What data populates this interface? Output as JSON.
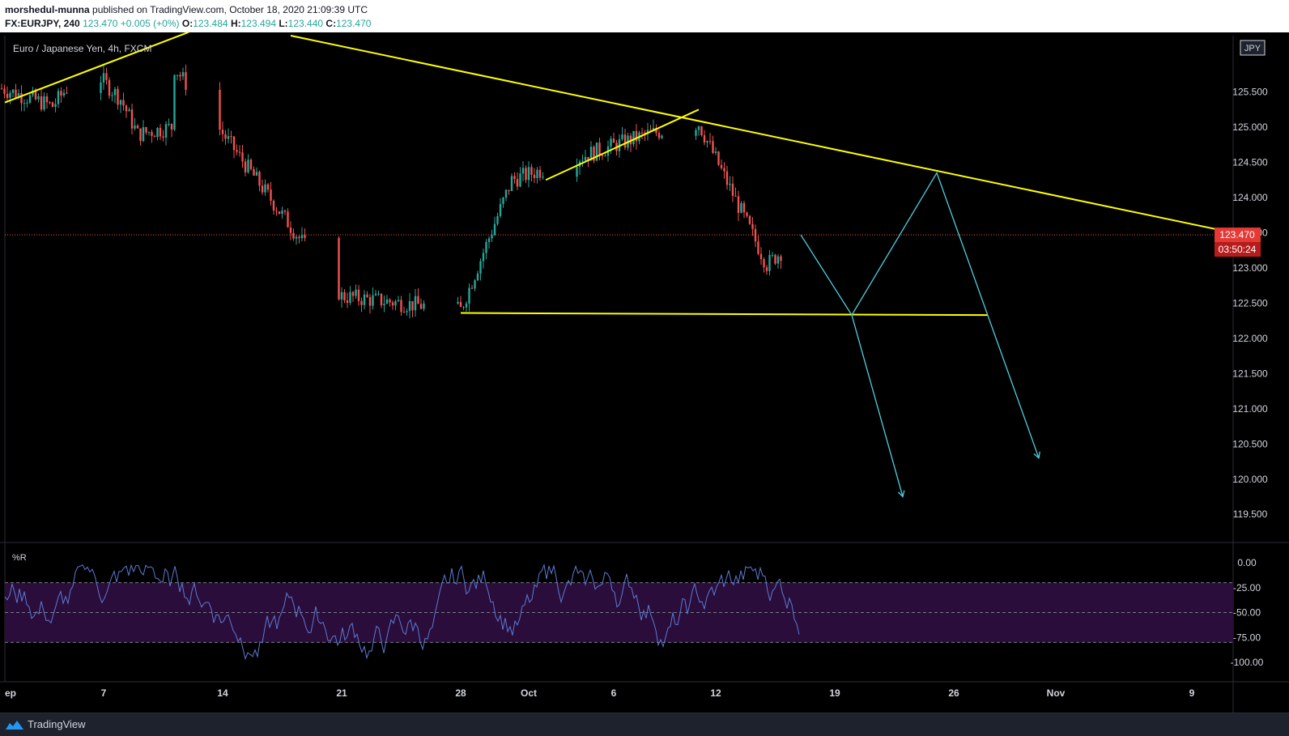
{
  "header": {
    "author": "morshedul-munna",
    "published_text": "published on TradingView.com, October 18, 2020 21:09:39 UTC",
    "symbol": "FX:EURJPY, 240",
    "last": "123.470",
    "change": "+0.005 (+0%)",
    "ohlc": [
      {
        "k": "O:",
        "v": "123.484"
      },
      {
        "k": "H:",
        "v": "123.494"
      },
      {
        "k": "L:",
        "v": "123.440"
      },
      {
        "k": "C:",
        "v": "123.470"
      }
    ]
  },
  "chart_data": [
    {
      "type": "candlestick",
      "title": "Euro / Japanese Yen, 4h, FXCM",
      "currency": "JPY",
      "ylim": [
        119.1,
        126.3
      ],
      "y_ticks": [
        "125.500",
        "125.000",
        "124.500",
        "124.000",
        "123.500",
        "123.000",
        "122.500",
        "122.000",
        "121.500",
        "121.000",
        "120.500",
        "120.000",
        "119.500"
      ],
      "x_ticks": [
        "ep",
        "7",
        "14",
        "21",
        "28",
        "Oct",
        "6",
        "12",
        "19",
        "26",
        "Nov",
        "9"
      ],
      "current_price": {
        "price": 123.47,
        "label": "123.470",
        "countdown": "03:50:24"
      },
      "key_points": [
        {
          "date": "Sep 11",
          "price": 125.9
        },
        {
          "date": "Sep 21",
          "price": 122.6
        },
        {
          "date": "Sep 28",
          "price": 122.4
        },
        {
          "date": "Oct 1",
          "price": 124.25
        },
        {
          "date": "Oct 9",
          "price": 124.9
        },
        {
          "date": "Oct 12",
          "price": 125.05
        },
        {
          "date": "Oct 16",
          "price": 123.05
        },
        {
          "date": "Oct 18",
          "price": 123.47
        }
      ],
      "drawings": {
        "trendline_color": "#ffff00",
        "projection_color": "#4dd0e1",
        "support_level": 122.33,
        "projection_path": [
          {
            "date": "Oct 18",
            "price": 123.47
          },
          {
            "date": "Oct 21",
            "price": 122.33
          },
          {
            "date": "Oct 26",
            "price": 124.35
          },
          {
            "date": "Nov 1",
            "price": 120.3
          }
        ],
        "alt_target": {
          "date": "Oct 24",
          "price": 119.75
        }
      },
      "colors": {
        "up": "#26a69a",
        "down": "#ef5350"
      }
    },
    {
      "type": "line",
      "title": "%R",
      "ylim": [
        -100,
        0
      ],
      "y_ticks": [
        "0.00",
        "-25.00",
        "-50.00",
        "-75.00",
        "-100.00"
      ],
      "bands": {
        "upper": -20,
        "middle": -50,
        "lower": -80
      },
      "line_color": "#5b7bd5",
      "band_color": "#2a0d3a"
    }
  ],
  "footer": {
    "brand": "TradingView"
  }
}
